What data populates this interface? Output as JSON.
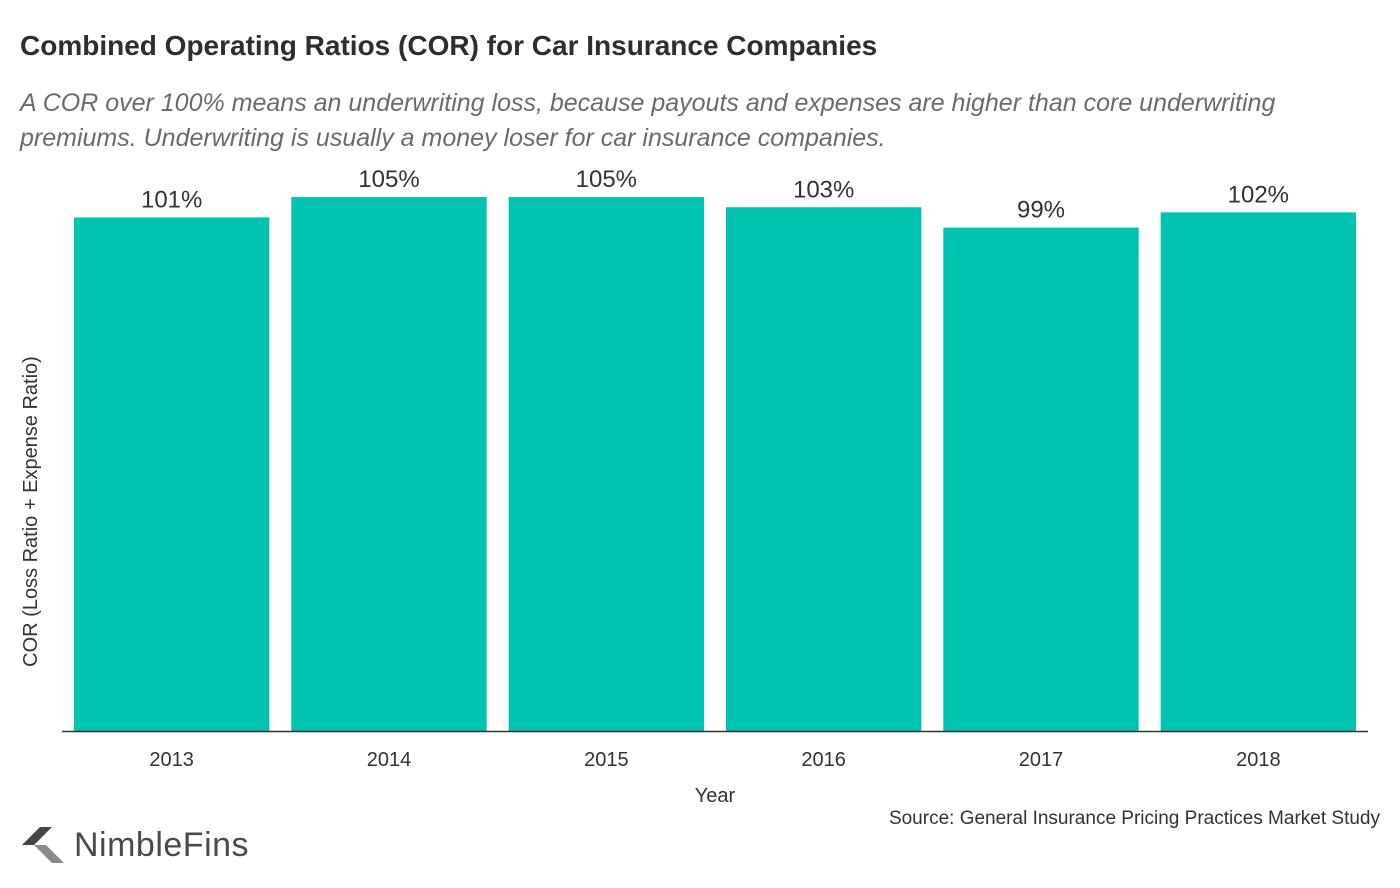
{
  "title": "Combined Operating Ratios (COR) for Car Insurance Companies",
  "subtitle": "A COR over 100% means an underwriting loss, because payouts and expenses are higher than core underwriting premiums. Underwriting is usually a money loser for car insurance companies.",
  "source": "Source: General Insurance Pricing Practices Market Study",
  "brand": {
    "name": "NimbleFins",
    "logo_icon": "chevron-logo-icon"
  },
  "chart_data": {
    "type": "bar",
    "title": "Combined Operating Ratios (COR) for Car Insurance Companies",
    "xlabel": "Year",
    "ylabel": "COR (Loss Ratio + Expense Ratio)",
    "categories": [
      "2013",
      "2014",
      "2015",
      "2016",
      "2017",
      "2018"
    ],
    "values": [
      101,
      105,
      105,
      103,
      99,
      102
    ],
    "data_labels": [
      "101%",
      "105%",
      "105%",
      "103%",
      "99%",
      "102%"
    ],
    "ylim": [
      0,
      106
    ],
    "grid": false,
    "legend": "none",
    "colors": {
      "bar": "#00c4b0",
      "axis": "#333333",
      "text": "#333333"
    }
  }
}
